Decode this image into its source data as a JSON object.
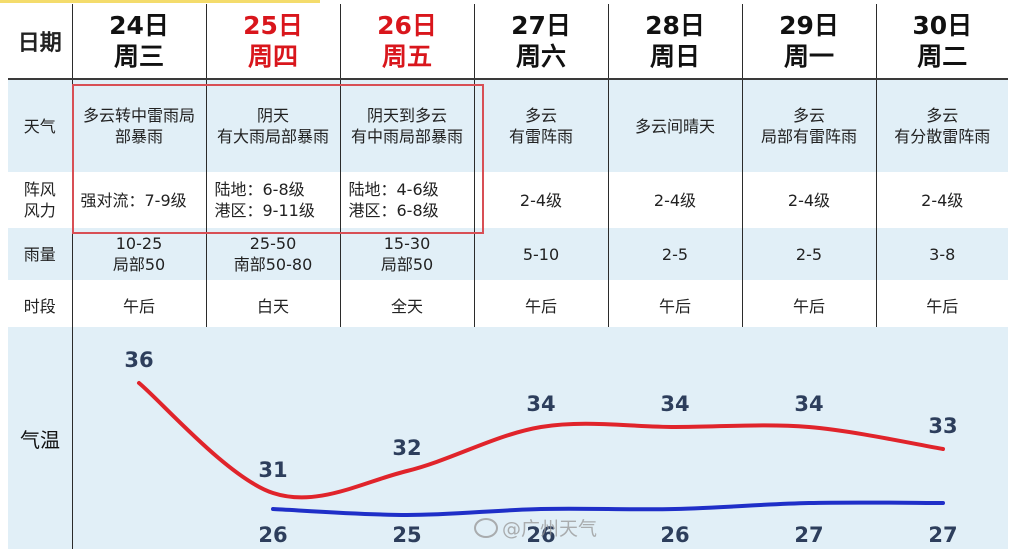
{
  "row_labels": {
    "date": "日期",
    "weather": "天气",
    "wind": [
      "阵风",
      "风力"
    ],
    "rain": "雨量",
    "period": "时段",
    "temp": "气温"
  },
  "days": [
    {
      "date": "24日",
      "weekday": "周三",
      "highlight": false,
      "weather": [
        "多云转中雷雨局",
        "部暴雨"
      ],
      "wind": [
        "强对流：7-9级"
      ],
      "rain": [
        "10-25",
        "局部50"
      ],
      "period": "午后"
    },
    {
      "date": "25日",
      "weekday": "周四",
      "highlight": true,
      "weather": [
        "阴天",
        "有大雨局部暴雨"
      ],
      "wind": [
        "陆地：6-8级",
        "港区：9-11级"
      ],
      "rain": [
        "25-50",
        "南部50-80"
      ],
      "period": "白天"
    },
    {
      "date": "26日",
      "weekday": "周五",
      "highlight": true,
      "weather": [
        "阴天到多云",
        "有中雨局部暴雨"
      ],
      "wind": [
        "陆地：4-6级",
        "港区：6-8级"
      ],
      "rain": [
        "15-30",
        "局部50"
      ],
      "period": "全天"
    },
    {
      "date": "27日",
      "weekday": "周六",
      "highlight": false,
      "weather": [
        "多云",
        "有雷阵雨"
      ],
      "wind": [
        "2-4级"
      ],
      "rain": [
        "5-10"
      ],
      "period": "午后"
    },
    {
      "date": "28日",
      "weekday": "周日",
      "highlight": false,
      "weather": [
        "多云间晴天"
      ],
      "wind": [
        "2-4级"
      ],
      "rain": [
        "2-5"
      ],
      "period": "午后"
    },
    {
      "date": "29日",
      "weekday": "周一",
      "highlight": false,
      "weather": [
        "多云",
        "局部有雷阵雨"
      ],
      "wind": [
        "2-4级"
      ],
      "rain": [
        "2-5"
      ],
      "period": "午后"
    },
    {
      "date": "30日",
      "weekday": "周二",
      "highlight": false,
      "weather": [
        "多云",
        "有分散雷阵雨"
      ],
      "wind": [
        "2-4级"
      ],
      "rain": [
        "3-8"
      ],
      "period": "午后"
    }
  ],
  "temperature": {
    "high": [
      36,
      31,
      32,
      34,
      34,
      34,
      33
    ],
    "low": [
      null,
      26,
      25,
      26,
      26,
      27,
      27
    ],
    "high_color": "#e0242b",
    "low_color": "#1f2fc8"
  },
  "watermark": "@广州天气",
  "colors": {
    "highlight": "#d9161c",
    "row_tint": "#e1eff7",
    "box": "#d84f55"
  }
}
